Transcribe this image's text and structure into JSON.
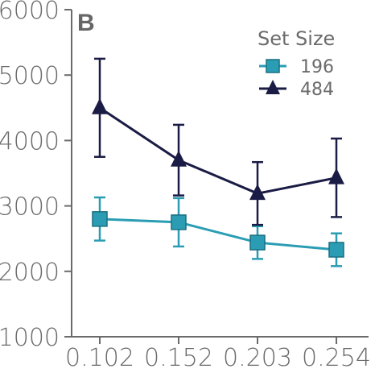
{
  "chart_data": {
    "type": "line",
    "panel_label": "B",
    "x": [
      "0.102",
      "0.152",
      "0.203",
      "0.254"
    ],
    "ylim": [
      1000,
      6000
    ],
    "yticks": [
      1000,
      2000,
      3000,
      4000,
      5000,
      6000
    ],
    "ytick_labels": [
      "1000",
      "2000",
      "3000",
      "4000",
      "5000",
      "6000"
    ],
    "grid": false,
    "legend": {
      "title": "Set Size",
      "placement": "top-right"
    },
    "series": [
      {
        "name": "196",
        "color": "#2a9db4",
        "marker": "square",
        "values": [
          2800,
          2750,
          2440,
          2330
        ],
        "error": [
          330,
          370,
          250,
          250
        ]
      },
      {
        "name": "484",
        "color": "#1b1c45",
        "marker": "triangle",
        "values": [
          4500,
          3700,
          3190,
          3430
        ],
        "error": [
          750,
          540,
          480,
          600
        ]
      }
    ]
  }
}
